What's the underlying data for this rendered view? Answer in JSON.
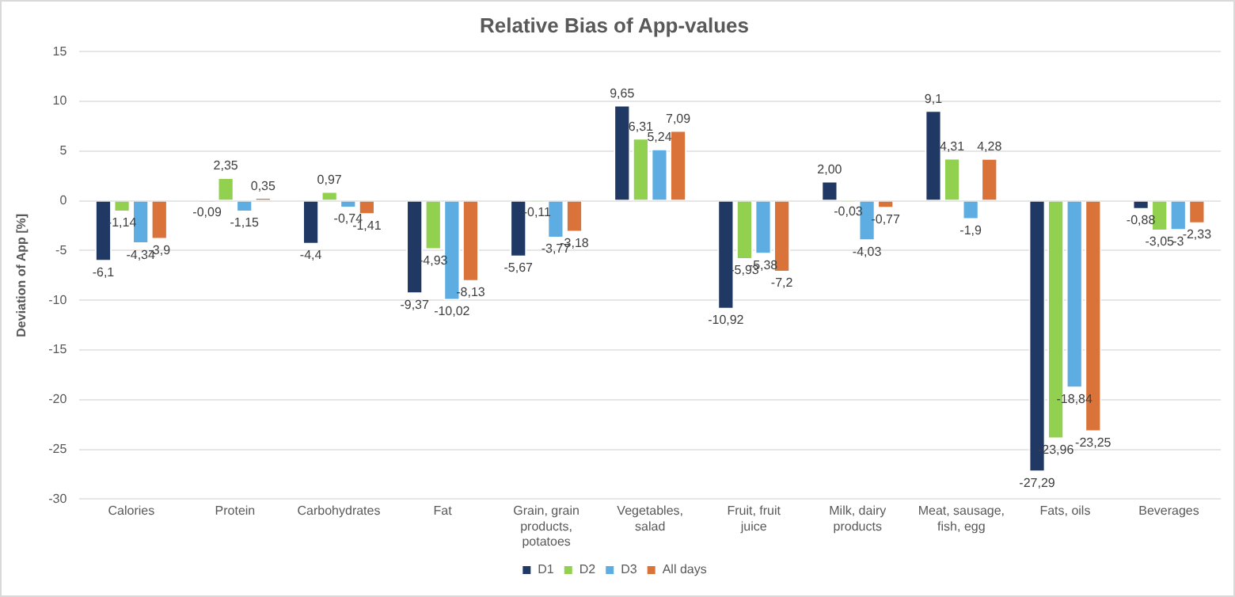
{
  "chart_data": {
    "type": "bar",
    "title": "Relative Bias of App-values",
    "ylabel": "Deviation of App [%]",
    "categories": [
      "Calories",
      "Protein",
      "Carbohydrates",
      "Fat",
      "Grain, grain products, potatoes",
      "Vegetables, salad",
      "Fruit, fruit juice",
      "Milk, dairy products",
      "Meat, sausage, fish, egg",
      "Fats, oils",
      "Beverages"
    ],
    "series": [
      {
        "name": "D1",
        "color": "#203864",
        "values": [
          -6.1,
          -0.09,
          -4.4,
          -9.37,
          -5.67,
          9.65,
          -10.92,
          2.0,
          9.1,
          -27.29,
          -0.88
        ],
        "value_labels": [
          "-6,1",
          "-0,09",
          "-4,4",
          "-9,37",
          "-5,67",
          "9,65",
          "-10,92",
          "2,00",
          "9,1",
          "-27,29",
          "-0,88"
        ]
      },
      {
        "name": "D2",
        "color": "#92d050",
        "values": [
          -1.14,
          2.35,
          0.97,
          -4.93,
          -0.11,
          6.31,
          -5.93,
          -0.03,
          4.31,
          -23.96,
          -3.05
        ],
        "value_labels": [
          "-1,14",
          "2,35",
          "0,97",
          "-4,93",
          "-0,11",
          "6,31",
          "-5,93",
          "-0,03",
          "4,31",
          "-23,96",
          "-3,05"
        ]
      },
      {
        "name": "D3",
        "color": "#5dade2",
        "values": [
          -4.34,
          -1.15,
          -0.74,
          -10.02,
          -3.77,
          5.24,
          -5.38,
          -4.03,
          -1.9,
          -18.84,
          -3
        ],
        "value_labels": [
          "-4,34",
          "-1,15",
          "-0,74",
          "-10,02",
          "-3,77",
          "5,24",
          "-5,38",
          "-4,03",
          "-1,9",
          "-18,84",
          "-3"
        ]
      },
      {
        "name": "All days",
        "color": "#d9733a",
        "values": [
          -3.9,
          0.35,
          -1.41,
          -8.13,
          -3.18,
          7.09,
          -7.2,
          -0.77,
          4.28,
          -23.25,
          -2.33
        ],
        "value_labels": [
          "-3,9",
          "0,35",
          "-1,41",
          "-8,13",
          "-3,18",
          "7,09",
          "-7,2",
          "-0,77",
          "4,28",
          "-23,25",
          "-2,33"
        ]
      }
    ],
    "ylim": [
      -30,
      15
    ],
    "yticks": [
      -30,
      -25,
      -20,
      -15,
      -10,
      -5,
      0,
      5,
      10,
      15
    ],
    "grid": "y",
    "legend": "bottom"
  }
}
